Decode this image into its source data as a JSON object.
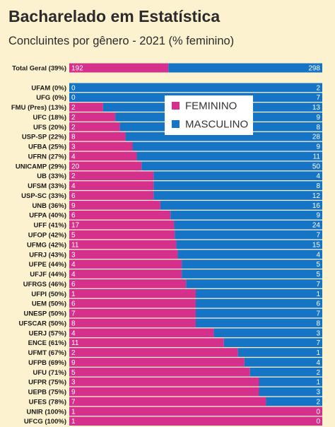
{
  "chart_data": {
    "type": "bar",
    "stacked": "percent",
    "title": "Bacharelado em Estatística",
    "subtitle": "Concluintes por gênero - 2021 (% feminino)",
    "legend_position": "top-right",
    "colors": {
      "feminino": "#d5318c",
      "masculino": "#1574c5"
    },
    "series": [
      {
        "name": "FEMININO",
        "key": "feminino"
      },
      {
        "name": "MASCULINO",
        "key": "masculino"
      }
    ],
    "total": {
      "label": "Total Geral (39%)",
      "feminino": 192,
      "masculino": 298
    },
    "rows": [
      {
        "label": "UFAM (0%)",
        "feminino": 0,
        "masculino": 2
      },
      {
        "label": "UFG (0%)",
        "feminino": 0,
        "masculino": 7
      },
      {
        "label": "FMU (Pres) (13%)",
        "feminino": 2,
        "masculino": 13
      },
      {
        "label": "UFC (18%)",
        "feminino": 2,
        "masculino": 9
      },
      {
        "label": "UFS (20%)",
        "feminino": 2,
        "masculino": 8
      },
      {
        "label": "USP-SP (22%)",
        "feminino": 8,
        "masculino": 28
      },
      {
        "label": "UFBA (25%)",
        "feminino": 3,
        "masculino": 9
      },
      {
        "label": "UFRN (27%)",
        "feminino": 4,
        "masculino": 11
      },
      {
        "label": "UNICAMP (29%)",
        "feminino": 20,
        "masculino": 50
      },
      {
        "label": "UB (33%)",
        "feminino": 2,
        "masculino": 4
      },
      {
        "label": "UFSM (33%)",
        "feminino": 4,
        "masculino": 8
      },
      {
        "label": "USP-SC (33%)",
        "feminino": 6,
        "masculino": 12
      },
      {
        "label": "UNB (36%)",
        "feminino": 9,
        "masculino": 16
      },
      {
        "label": "UFPA (40%)",
        "feminino": 6,
        "masculino": 9
      },
      {
        "label": "UFF (41%)",
        "feminino": 17,
        "masculino": 24
      },
      {
        "label": "UFOP (42%)",
        "feminino": 5,
        "masculino": 7
      },
      {
        "label": "UFMG (42%)",
        "feminino": 11,
        "masculino": 15
      },
      {
        "label": "UFRJ (43%)",
        "feminino": 3,
        "masculino": 4
      },
      {
        "label": "UFPE (44%)",
        "feminino": 4,
        "masculino": 5
      },
      {
        "label": "UFJF (44%)",
        "feminino": 4,
        "masculino": 5
      },
      {
        "label": "UFRGS (46%)",
        "feminino": 6,
        "masculino": 7
      },
      {
        "label": "UFPI (50%)",
        "feminino": 1,
        "masculino": 1
      },
      {
        "label": "UEM (50%)",
        "feminino": 6,
        "masculino": 6
      },
      {
        "label": "UNESP (50%)",
        "feminino": 7,
        "masculino": 7
      },
      {
        "label": "UFSCAR (50%)",
        "feminino": 8,
        "masculino": 8
      },
      {
        "label": "UERJ (57%)",
        "feminino": 4,
        "masculino": 3
      },
      {
        "label": "ENCE (61%)",
        "feminino": 11,
        "masculino": 7
      },
      {
        "label": "UFMT (67%)",
        "feminino": 2,
        "masculino": 1
      },
      {
        "label": "UFPB (69%)",
        "feminino": 9,
        "masculino": 4
      },
      {
        "label": "UFU (71%)",
        "feminino": 5,
        "masculino": 2
      },
      {
        "label": "UFPR (75%)",
        "feminino": 3,
        "masculino": 1
      },
      {
        "label": "UEPB (75%)",
        "feminino": 9,
        "masculino": 3
      },
      {
        "label": "UFES (78%)",
        "feminino": 7,
        "masculino": 2
      },
      {
        "label": "UNIR (100%)",
        "feminino": 1,
        "masculino": 0
      },
      {
        "label": "UFCG (100%)",
        "feminino": 1,
        "masculino": 0
      }
    ]
  }
}
